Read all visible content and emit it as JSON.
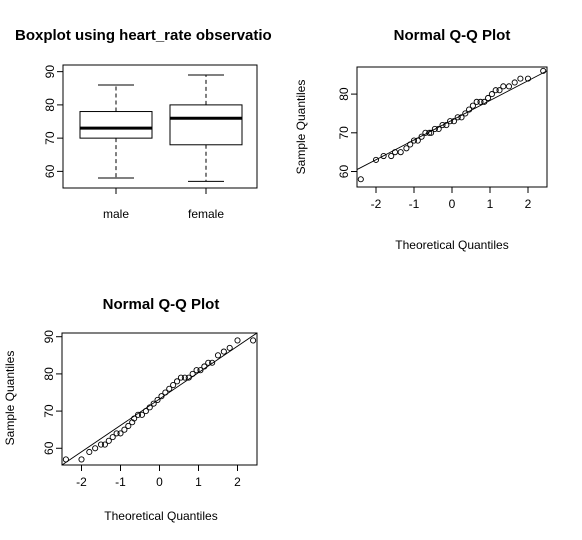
{
  "chart_data": [
    {
      "type": "boxplot",
      "title": "Boxplot using heart_rate observatio",
      "categories": [
        "male",
        "female"
      ],
      "boxes": [
        {
          "category": "male",
          "min": 58,
          "q1": 70,
          "median": 73,
          "q3": 78,
          "max": 86
        },
        {
          "category": "female",
          "min": 57,
          "q1": 68,
          "median": 76,
          "q3": 80,
          "max": 89
        }
      ],
      "ylim": [
        55,
        92
      ],
      "yticks": [
        "60",
        "70",
        "80",
        "90"
      ]
    },
    {
      "type": "scatter",
      "title": "Normal Q-Q Plot",
      "xlabel": "Theoretical Quantiles",
      "ylabel": "Sample Quantiles",
      "xlim": [
        -2.5,
        2.5
      ],
      "ylim": [
        56,
        87
      ],
      "xticks": [
        "-2",
        "-1",
        "0",
        "1",
        "2"
      ],
      "yticks": [
        "60",
        "70",
        "80"
      ],
      "points": [
        [
          -2.4,
          58
        ],
        [
          -2.0,
          63
        ],
        [
          -1.8,
          64
        ],
        [
          -1.6,
          64
        ],
        [
          -1.5,
          65
        ],
        [
          -1.35,
          65
        ],
        [
          -1.2,
          66
        ],
        [
          -1.1,
          67
        ],
        [
          -1.0,
          68
        ],
        [
          -0.9,
          68
        ],
        [
          -0.8,
          69
        ],
        [
          -0.7,
          70
        ],
        [
          -0.6,
          70
        ],
        [
          -0.55,
          70
        ],
        [
          -0.45,
          71
        ],
        [
          -0.35,
          71
        ],
        [
          -0.25,
          72
        ],
        [
          -0.15,
          72
        ],
        [
          -0.05,
          73
        ],
        [
          0.05,
          73
        ],
        [
          0.15,
          74
        ],
        [
          0.25,
          74
        ],
        [
          0.35,
          75
        ],
        [
          0.45,
          76
        ],
        [
          0.55,
          77
        ],
        [
          0.65,
          78
        ],
        [
          0.75,
          78
        ],
        [
          0.85,
          78
        ],
        [
          0.95,
          79
        ],
        [
          1.05,
          80
        ],
        [
          1.15,
          81
        ],
        [
          1.25,
          81
        ],
        [
          1.35,
          82
        ],
        [
          1.5,
          82
        ],
        [
          1.65,
          83
        ],
        [
          1.8,
          84
        ],
        [
          2.0,
          84
        ],
        [
          2.4,
          86
        ]
      ],
      "reference_line": [
        [
          -2.5,
          60.5
        ],
        [
          2.5,
          86.0
        ]
      ]
    },
    {
      "type": "scatter",
      "title": "Normal Q-Q Plot",
      "xlabel": "Theoretical Quantiles",
      "ylabel": "Sample Quantiles",
      "xlim": [
        -2.5,
        2.5
      ],
      "ylim": [
        55.5,
        91
      ],
      "xticks": [
        "-2",
        "-1",
        "0",
        "1",
        "2"
      ],
      "yticks": [
        "60",
        "70",
        "80",
        "90"
      ],
      "points": [
        [
          -2.4,
          57
        ],
        [
          -2.0,
          57
        ],
        [
          -1.8,
          59
        ],
        [
          -1.65,
          60
        ],
        [
          -1.5,
          61
        ],
        [
          -1.4,
          61
        ],
        [
          -1.3,
          62
        ],
        [
          -1.2,
          63
        ],
        [
          -1.1,
          64
        ],
        [
          -1.0,
          64
        ],
        [
          -0.9,
          65
        ],
        [
          -0.8,
          66
        ],
        [
          -0.7,
          67
        ],
        [
          -0.65,
          68
        ],
        [
          -0.55,
          69
        ],
        [
          -0.45,
          69
        ],
        [
          -0.35,
          70
        ],
        [
          -0.25,
          71
        ],
        [
          -0.15,
          72
        ],
        [
          -0.05,
          73
        ],
        [
          0.05,
          74
        ],
        [
          0.15,
          75
        ],
        [
          0.25,
          76
        ],
        [
          0.35,
          77
        ],
        [
          0.45,
          78
        ],
        [
          0.55,
          79
        ],
        [
          0.65,
          79
        ],
        [
          0.75,
          79
        ],
        [
          0.85,
          80
        ],
        [
          0.95,
          81
        ],
        [
          1.05,
          81
        ],
        [
          1.15,
          82
        ],
        [
          1.25,
          83
        ],
        [
          1.35,
          83
        ],
        [
          1.5,
          85
        ],
        [
          1.65,
          86
        ],
        [
          1.8,
          87
        ],
        [
          2.0,
          89
        ],
        [
          2.4,
          89
        ]
      ],
      "reference_line": [
        [
          -2.5,
          55.5
        ],
        [
          2.5,
          91.0
        ]
      ]
    }
  ]
}
